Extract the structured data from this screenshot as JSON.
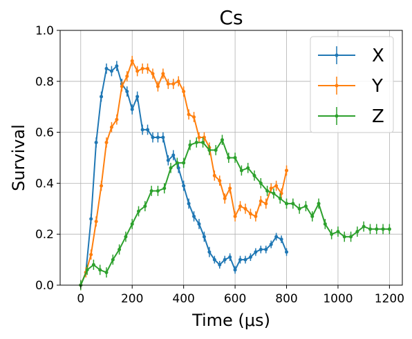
{
  "chart_data": {
    "type": "line",
    "title": "Cs",
    "xlabel": "Time (μs)",
    "ylabel": "Survival",
    "xlim": [
      -80,
      1250
    ],
    "ylim": [
      0,
      1
    ],
    "xticks": [
      0,
      200,
      400,
      600,
      800,
      1000,
      1200
    ],
    "yticks": [
      0.0,
      0.2,
      0.4,
      0.6,
      0.8,
      1.0
    ],
    "xtick_labels": [
      "0",
      "200",
      "400",
      "600",
      "800",
      "1000",
      "1200"
    ],
    "ytick_labels": [
      "0.0",
      "0.2",
      "0.4",
      "0.6",
      "0.8",
      "1.0"
    ],
    "grid": true,
    "legend_position": "top-right",
    "series": [
      {
        "name": "X",
        "color": "#1f77b4",
        "x": [
          0,
          20,
          40,
          60,
          80,
          100,
          120,
          140,
          160,
          180,
          200,
          220,
          240,
          260,
          280,
          300,
          320,
          340,
          360,
          380,
          400,
          420,
          440,
          460,
          480,
          500,
          520,
          540,
          560,
          580,
          600,
          620,
          640,
          660,
          680,
          700,
          720,
          740,
          760,
          780,
          800
        ],
        "y": [
          0.0,
          0.05,
          0.26,
          0.56,
          0.74,
          0.85,
          0.84,
          0.86,
          0.79,
          0.76,
          0.69,
          0.74,
          0.61,
          0.61,
          0.58,
          0.58,
          0.58,
          0.49,
          0.51,
          0.46,
          0.39,
          0.32,
          0.27,
          0.24,
          0.19,
          0.13,
          0.1,
          0.08,
          0.1,
          0.11,
          0.06,
          0.1,
          0.1,
          0.11,
          0.13,
          0.14,
          0.14,
          0.16,
          0.19,
          0.18,
          0.13
        ],
        "err": [
          0.01,
          0.015,
          0.02,
          0.02,
          0.02,
          0.02,
          0.02,
          0.02,
          0.02,
          0.02,
          0.02,
          0.02,
          0.02,
          0.02,
          0.02,
          0.02,
          0.02,
          0.02,
          0.02,
          0.02,
          0.02,
          0.02,
          0.02,
          0.02,
          0.02,
          0.02,
          0.015,
          0.015,
          0.015,
          0.015,
          0.015,
          0.015,
          0.015,
          0.015,
          0.015,
          0.015,
          0.015,
          0.015,
          0.015,
          0.015,
          0.015
        ]
      },
      {
        "name": "Y",
        "color": "#ff7f0e",
        "x": [
          0,
          20,
          40,
          60,
          80,
          100,
          120,
          140,
          160,
          180,
          200,
          220,
          240,
          260,
          280,
          300,
          320,
          340,
          360,
          380,
          400,
          420,
          440,
          460,
          480,
          500,
          520,
          540,
          560,
          580,
          600,
          620,
          640,
          660,
          680,
          700,
          720,
          740,
          760,
          780,
          800
        ],
        "y": [
          0.0,
          0.05,
          0.12,
          0.25,
          0.39,
          0.56,
          0.62,
          0.65,
          0.78,
          0.82,
          0.88,
          0.84,
          0.85,
          0.85,
          0.83,
          0.78,
          0.83,
          0.79,
          0.79,
          0.8,
          0.76,
          0.67,
          0.66,
          0.58,
          0.58,
          0.54,
          0.43,
          0.41,
          0.34,
          0.38,
          0.27,
          0.31,
          0.3,
          0.28,
          0.27,
          0.33,
          0.32,
          0.38,
          0.39,
          0.36,
          0.45
        ]
      },
      {
        "name": "Z",
        "color": "#2ca02c",
        "x": [
          0,
          25,
          50,
          75,
          100,
          125,
          150,
          175,
          200,
          225,
          250,
          275,
          300,
          325,
          350,
          375,
          400,
          425,
          450,
          475,
          500,
          525,
          550,
          575,
          600,
          625,
          650,
          675,
          700,
          725,
          750,
          775,
          800,
          825,
          850,
          875,
          900,
          925,
          950,
          975,
          1000,
          1025,
          1050,
          1075,
          1100,
          1125,
          1150,
          1175,
          1200
        ],
        "y": [
          0.0,
          0.06,
          0.08,
          0.06,
          0.05,
          0.1,
          0.14,
          0.19,
          0.24,
          0.29,
          0.31,
          0.37,
          0.37,
          0.38,
          0.46,
          0.48,
          0.48,
          0.55,
          0.56,
          0.56,
          0.53,
          0.53,
          0.57,
          0.5,
          0.5,
          0.45,
          0.46,
          0.43,
          0.4,
          0.37,
          0.36,
          0.34,
          0.32,
          0.32,
          0.3,
          0.31,
          0.27,
          0.32,
          0.24,
          0.2,
          0.21,
          0.19,
          0.19,
          0.21,
          0.23,
          0.22,
          0.22,
          0.22,
          0.22
        ]
      }
    ]
  }
}
